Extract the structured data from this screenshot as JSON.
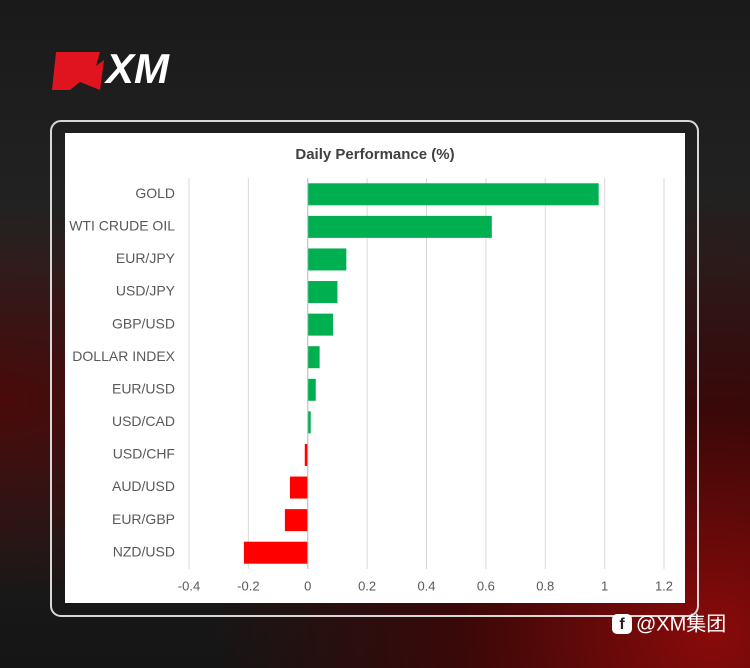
{
  "brand": "XM",
  "footer": "@XM集团",
  "chart_data": {
    "type": "hbar",
    "title": "Daily Performance (%)",
    "categories": [
      "GOLD",
      "WTI CRUDE OIL",
      "EUR/JPY",
      "USD/JPY",
      "GBP/USD",
      "DOLLAR INDEX",
      "EUR/USD",
      "USD/CAD",
      "USD/CHF",
      "AUD/USD",
      "EUR/GBP",
      "NZD/USD"
    ],
    "values": [
      0.98,
      0.62,
      0.13,
      0.1,
      0.085,
      0.04,
      0.027,
      0.01,
      -0.01,
      -0.06,
      -0.077,
      -0.215
    ],
    "color_positive": "#00b050",
    "color_negative": "#ff0000",
    "xlim": [
      -0.4,
      1.2
    ],
    "xticks": [
      -0.4,
      -0.2,
      0,
      0.2,
      0.4,
      0.6,
      0.8,
      1,
      1.2
    ],
    "grid": true
  }
}
